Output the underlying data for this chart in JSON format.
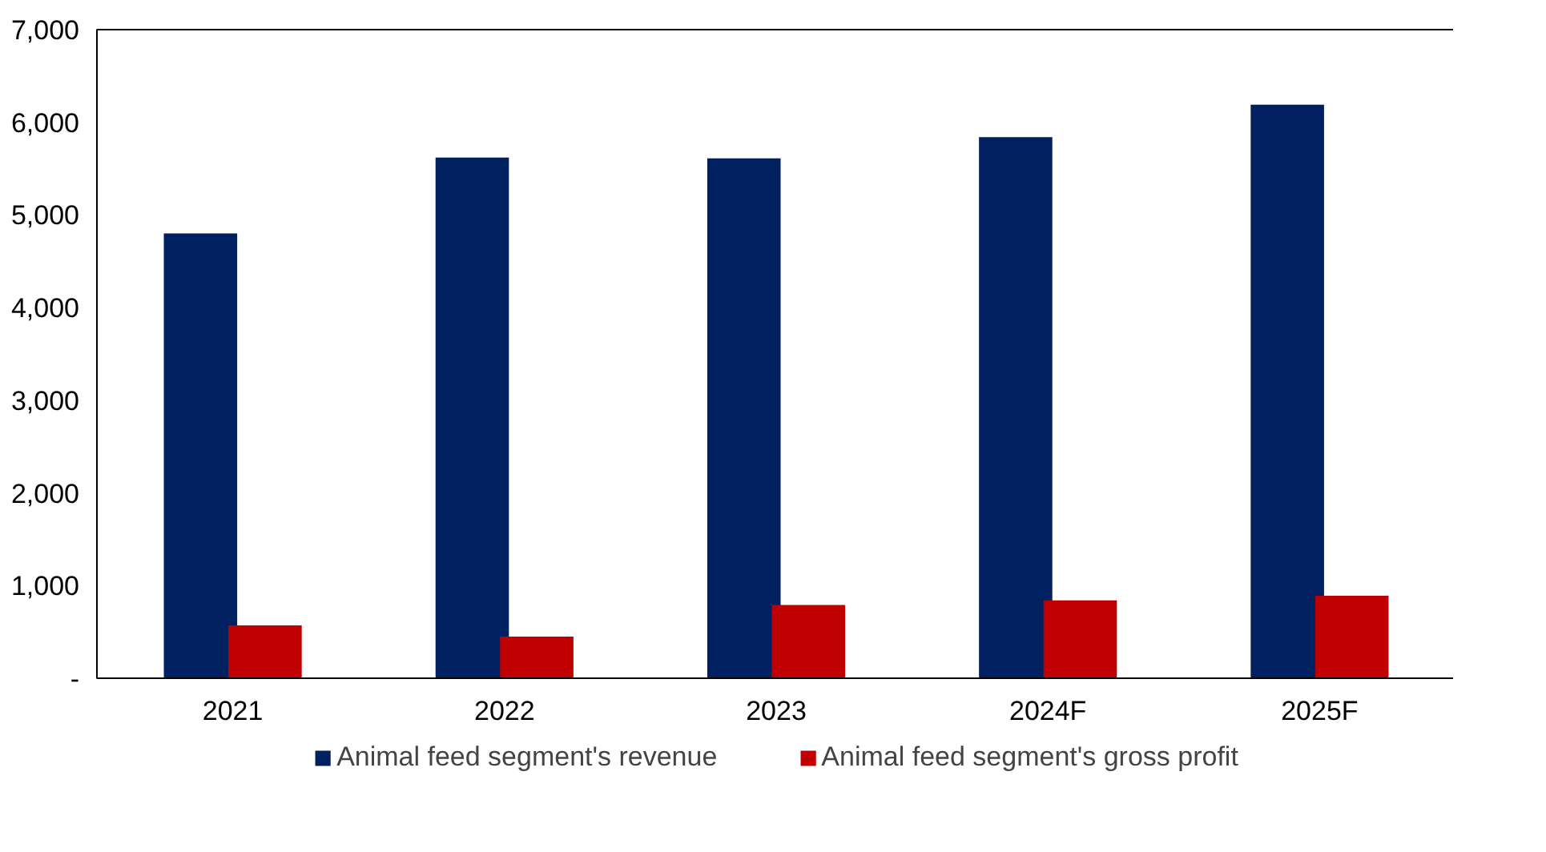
{
  "chart_data": {
    "type": "bar",
    "categories": [
      "2021",
      "2022",
      "2023",
      "2024F",
      "2025F"
    ],
    "series": [
      {
        "name": "Animal feed segment's revenue",
        "color": "#002060",
        "values": [
          4800,
          5620,
          5610,
          5840,
          6190
        ]
      },
      {
        "name": "Animal feed segment's gross profit",
        "color": "#c00000",
        "values": [
          570,
          450,
          790,
          840,
          890
        ]
      }
    ],
    "ylim": [
      0,
      7000
    ],
    "yticks": [
      {
        "value": 0,
        "label": "-"
      },
      {
        "value": 1000,
        "label": "1,000"
      },
      {
        "value": 2000,
        "label": "2,000"
      },
      {
        "value": 3000,
        "label": "3,000"
      },
      {
        "value": 4000,
        "label": "4,000"
      },
      {
        "value": 5000,
        "label": "5,000"
      },
      {
        "value": 6000,
        "label": "6,000"
      },
      {
        "value": 7000,
        "label": "7,000"
      }
    ],
    "grid": false,
    "legend": "bottom"
  }
}
